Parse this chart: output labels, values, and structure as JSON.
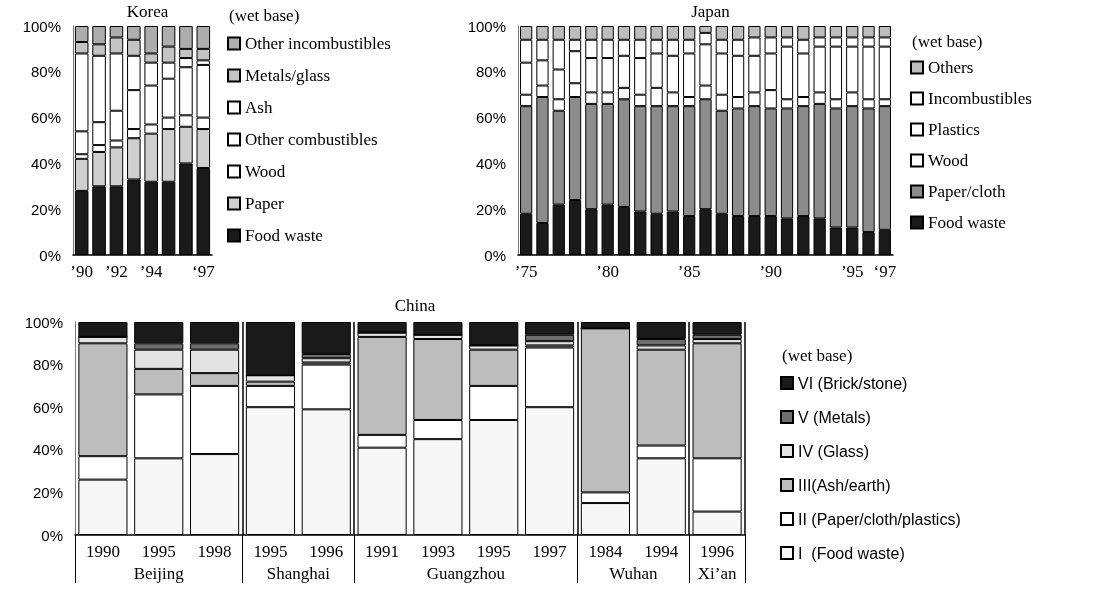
{
  "chart_data": [
    {
      "type": "bar",
      "title": "Korea",
      "legend_title": "(wet base)",
      "stacked": true,
      "legend": "right",
      "categories": [
        "’90",
        null,
        "’92",
        null,
        "’94",
        null,
        null,
        "‘97"
      ],
      "ylim": [
        0,
        100
      ],
      "yticks": [
        {
          "value": 0,
          "label": "0%"
        },
        {
          "value": 20,
          "label": "20%"
        },
        {
          "value": 40,
          "label": "40%"
        },
        {
          "value": 60,
          "label": "60%"
        },
        {
          "value": 80,
          "label": "80%"
        },
        {
          "value": 100,
          "label": "100%"
        }
      ],
      "series": [
        {
          "name": "Food waste",
          "color": "#1a1a1a",
          "values": [
            28,
            30,
            30,
            33,
            32,
            32,
            40,
            38
          ]
        },
        {
          "name": "Paper",
          "color": "#cfcfcf",
          "values": [
            14,
            15,
            17,
            18,
            21,
            23,
            16,
            17
          ]
        },
        {
          "name": "Wood",
          "color": "#ffffff",
          "values": [
            2,
            3,
            3,
            4,
            4,
            5,
            5,
            5
          ]
        },
        {
          "name": "Other combustibles",
          "color": "#ffffff",
          "values": [
            10,
            10,
            13,
            17,
            17,
            17,
            21,
            23
          ]
        },
        {
          "name": "Ash",
          "color": "#ffffff",
          "values": [
            34,
            29,
            25,
            15,
            10,
            7,
            4,
            2
          ]
        },
        {
          "name": "Metals/glass",
          "color": "#c4c4c4",
          "values": [
            5,
            5,
            7,
            7,
            4,
            7,
            4,
            5
          ]
        },
        {
          "name": "Other incombustibles",
          "color": "#adadad",
          "values": [
            7,
            8,
            5,
            6,
            12,
            9,
            10,
            10
          ]
        }
      ]
    },
    {
      "type": "bar",
      "title": "Japan",
      "legend_title": "(wet base)",
      "stacked": true,
      "legend": "right",
      "categories": [
        "’75",
        null,
        null,
        null,
        null,
        "’80",
        null,
        null,
        null,
        null,
        "’85",
        null,
        null,
        null,
        null,
        "’90",
        null,
        null,
        null,
        null,
        "’95",
        null,
        "‘97"
      ],
      "ylim": [
        0,
        100
      ],
      "yticks": [
        {
          "value": 0,
          "label": "0%"
        },
        {
          "value": 20,
          "label": "20%"
        },
        {
          "value": 40,
          "label": "40%"
        },
        {
          "value": 60,
          "label": "60%"
        },
        {
          "value": 80,
          "label": "80%"
        },
        {
          "value": 100,
          "label": "100%"
        }
      ],
      "series": [
        {
          "name": "Food waste",
          "color": "#1a1a1a",
          "values": [
            18,
            14,
            22,
            24,
            20,
            22,
            21,
            19,
            18,
            19,
            17,
            20,
            18,
            17,
            17,
            17,
            16,
            17,
            16,
            12,
            12,
            10,
            11
          ]
        },
        {
          "name": "Paper/cloth",
          "color": "#8c8c8c",
          "values": [
            47,
            55,
            41,
            45,
            46,
            44,
            47,
            46,
            47,
            46,
            48,
            48,
            45,
            47,
            48,
            47,
            48,
            48,
            50,
            52,
            53,
            54,
            54
          ]
        },
        {
          "name": "Wood",
          "color": "#ffffff",
          "values": [
            5,
            5,
            5,
            6,
            5,
            5,
            5,
            5,
            8,
            6,
            4,
            6,
            7,
            5,
            6,
            8,
            4,
            4,
            5,
            4,
            6,
            4,
            3
          ]
        },
        {
          "name": "Plastics",
          "color": "#ffffff",
          "values": [
            14,
            11,
            13,
            14,
            15,
            15,
            14,
            16,
            15,
            16,
            19,
            18,
            18,
            18,
            16,
            16,
            23,
            19,
            20,
            23,
            20,
            23,
            23
          ]
        },
        {
          "name": "Incombustibles",
          "color": "#ffffff",
          "values": [
            10,
            9,
            13,
            5,
            8,
            8,
            7,
            8,
            6,
            7,
            6,
            5,
            6,
            7,
            8,
            7,
            4,
            6,
            4,
            4,
            4,
            4,
            4
          ]
        },
        {
          "name": "Others",
          "color": "#bdbdbd",
          "values": [
            6,
            6,
            6,
            6,
            6,
            6,
            6,
            6,
            6,
            6,
            6,
            3,
            6,
            6,
            5,
            5,
            5,
            6,
            5,
            5,
            5,
            5,
            5
          ]
        }
      ]
    },
    {
      "type": "bar",
      "title": "China",
      "legend_title": "(wet base)",
      "stacked": true,
      "legend": "right",
      "categories": [
        "1990",
        "1995",
        "1998",
        "1995",
        "1996",
        "1991",
        "1993",
        "1995",
        "1997",
        "1984",
        "1994",
        "1996"
      ],
      "annotations": [
        "Beijing",
        "Shanghai",
        "Guangzhou",
        "Wuhan",
        "Xi’an"
      ],
      "ylim": [
        0,
        100
      ],
      "yticks": [
        {
          "value": 0,
          "label": "0%"
        },
        {
          "value": 20,
          "label": "20%"
        },
        {
          "value": 40,
          "label": "40%"
        },
        {
          "value": 60,
          "label": "60%"
        },
        {
          "value": 80,
          "label": "80%"
        },
        {
          "value": 100,
          "label": "100%"
        }
      ],
      "series": [
        {
          "name": "I  (Food waste)",
          "color": "#f7f7f7",
          "values": [
            26,
            36,
            38,
            60,
            59,
            41,
            45,
            54,
            60,
            15,
            36,
            11
          ]
        },
        {
          "name": "II (Paper/cloth/plastics)",
          "color": "#ffffff",
          "values": [
            11,
            30,
            32,
            10,
            21,
            6,
            9,
            16,
            28,
            5,
            6,
            25
          ]
        },
        {
          "name": "III(Ash/earth)",
          "color": "#bdbdbd",
          "values": [
            53,
            12,
            6,
            2,
            1,
            46,
            38,
            17,
            1,
            77,
            45,
            54
          ]
        },
        {
          "name": "IV (Glass)",
          "color": "#e3e3e3",
          "values": [
            3,
            9,
            11,
            3,
            2,
            2,
            2,
            2,
            2,
            0,
            2,
            2
          ]
        },
        {
          "name": "V (Metals)",
          "color": "#6e6e6e",
          "values": [
            0,
            3,
            3,
            0,
            2,
            0,
            0,
            0,
            3,
            0,
            3,
            2
          ]
        },
        {
          "name": "VI (Brick/stone)",
          "color": "#1a1a1a",
          "values": [
            7,
            10,
            10,
            25,
            15,
            5,
            6,
            11,
            6,
            3,
            8,
            6
          ]
        }
      ]
    }
  ]
}
